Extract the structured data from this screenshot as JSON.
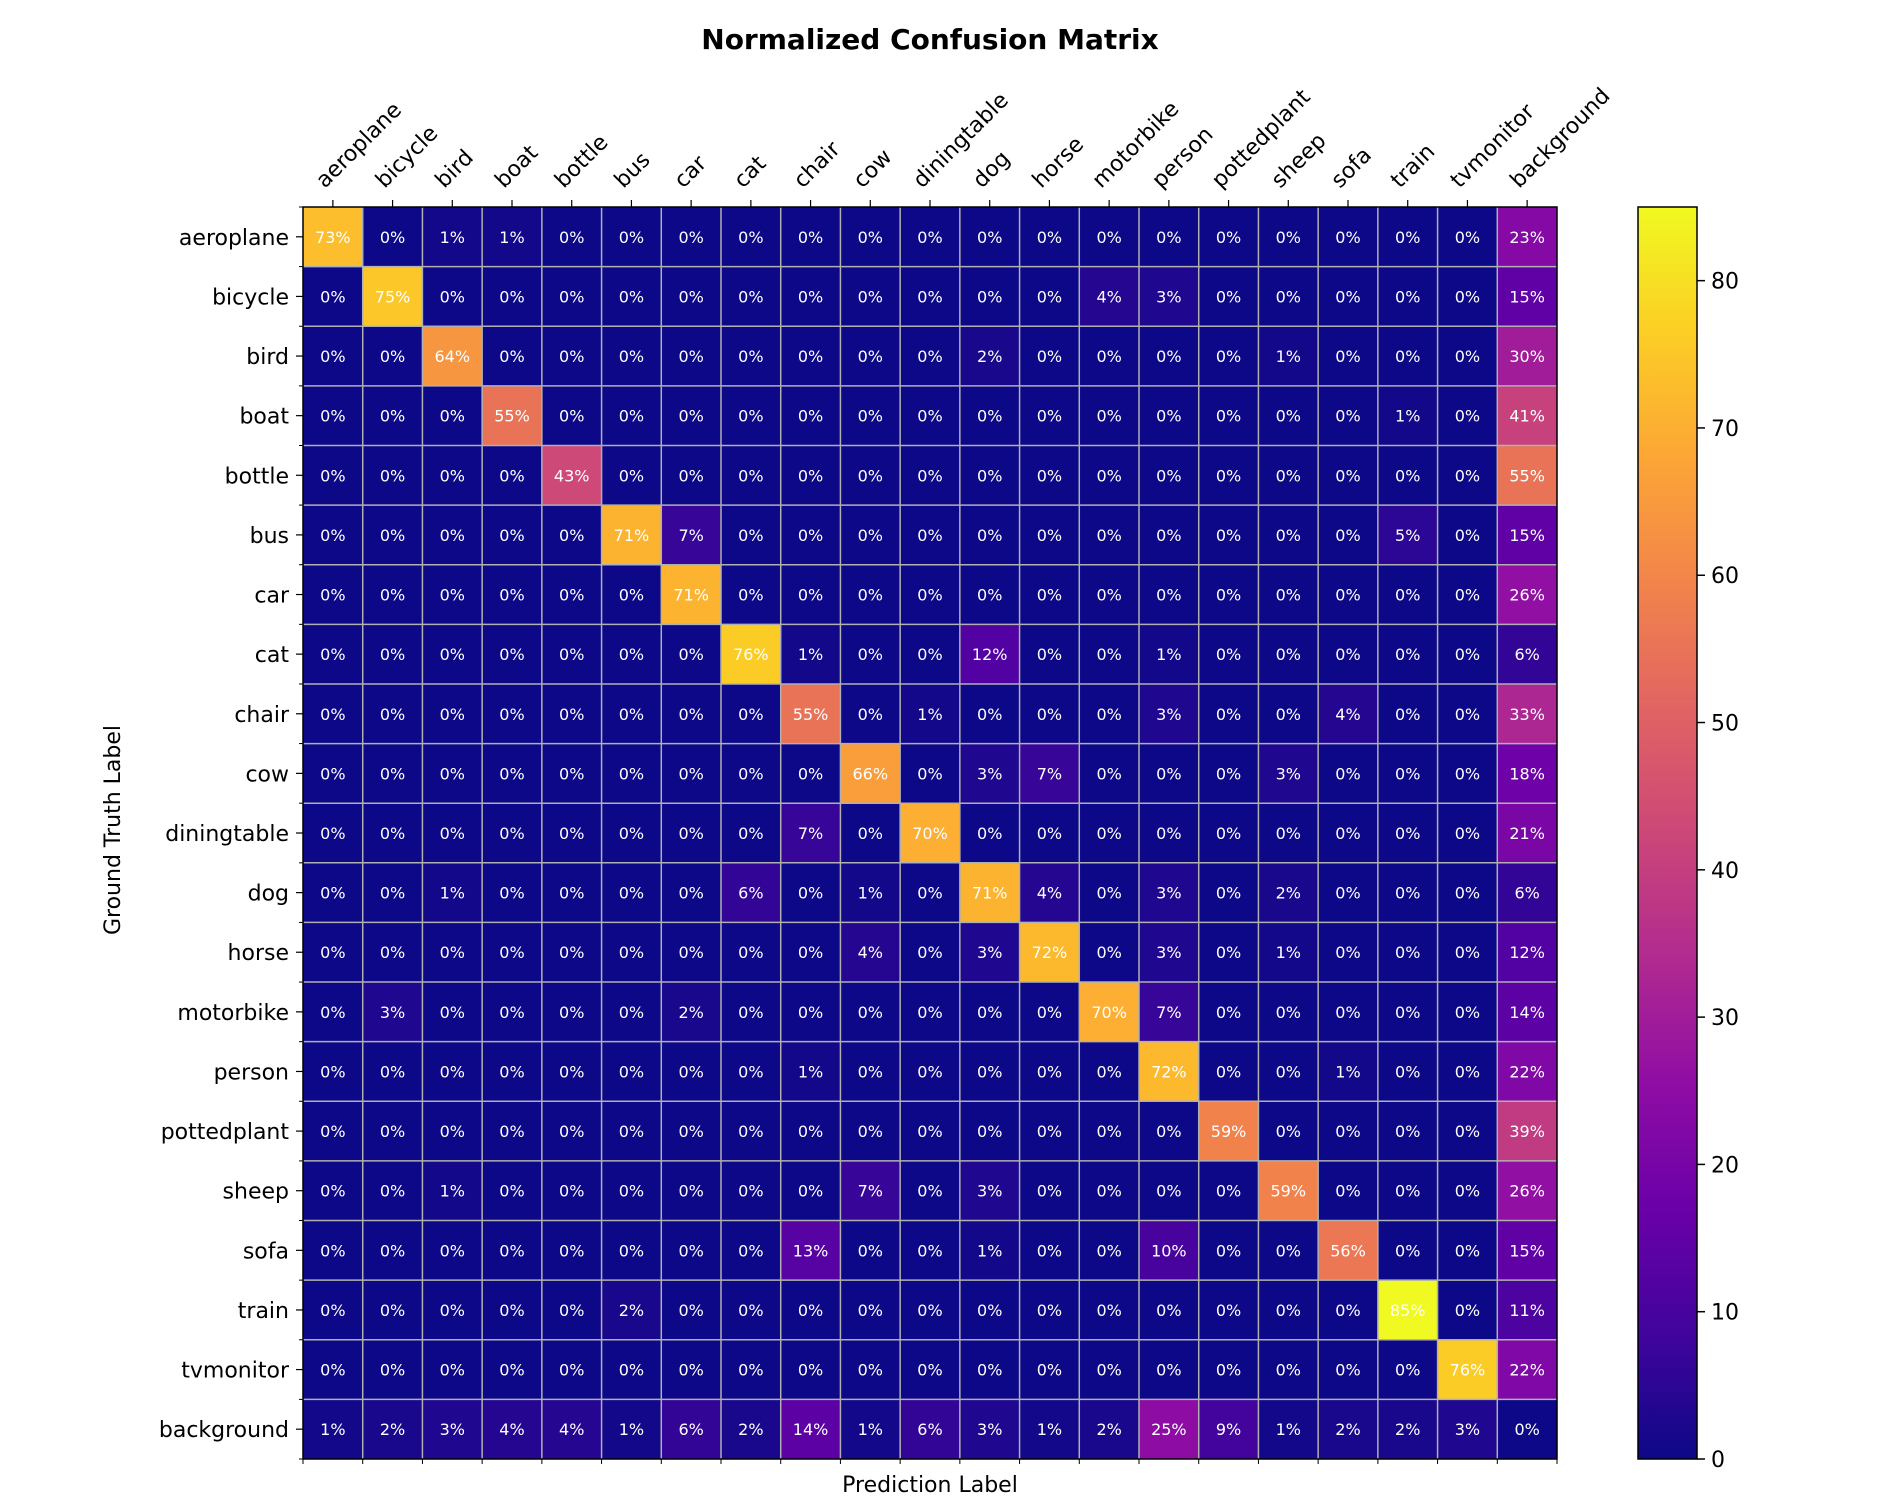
{
  "chart_data": {
    "type": "heatmap",
    "title": "Normalized Confusion Matrix",
    "xlabel": "Prediction Label",
    "ylabel": "Ground Truth Label",
    "categories": [
      "aeroplane",
      "bicycle",
      "bird",
      "boat",
      "bottle",
      "bus",
      "car",
      "cat",
      "chair",
      "cow",
      "diningtable",
      "dog",
      "horse",
      "motorbike",
      "person",
      "pottedplant",
      "sheep",
      "sofa",
      "train",
      "tvmonitor",
      "background"
    ],
    "matrix": [
      [
        73,
        0,
        1,
        1,
        0,
        0,
        0,
        0,
        0,
        0,
        0,
        0,
        0,
        0,
        0,
        0,
        0,
        0,
        0,
        0,
        23
      ],
      [
        0,
        75,
        0,
        0,
        0,
        0,
        0,
        0,
        0,
        0,
        0,
        0,
        0,
        4,
        3,
        0,
        0,
        0,
        0,
        0,
        15
      ],
      [
        0,
        0,
        64,
        0,
        0,
        0,
        0,
        0,
        0,
        0,
        0,
        2,
        0,
        0,
        0,
        0,
        1,
        0,
        0,
        0,
        30
      ],
      [
        0,
        0,
        0,
        55,
        0,
        0,
        0,
        0,
        0,
        0,
        0,
        0,
        0,
        0,
        0,
        0,
        0,
        0,
        1,
        0,
        41
      ],
      [
        0,
        0,
        0,
        0,
        43,
        0,
        0,
        0,
        0,
        0,
        0,
        0,
        0,
        0,
        0,
        0,
        0,
        0,
        0,
        0,
        55
      ],
      [
        0,
        0,
        0,
        0,
        0,
        71,
        7,
        0,
        0,
        0,
        0,
        0,
        0,
        0,
        0,
        0,
        0,
        0,
        5,
        0,
        15
      ],
      [
        0,
        0,
        0,
        0,
        0,
        0,
        71,
        0,
        0,
        0,
        0,
        0,
        0,
        0,
        0,
        0,
        0,
        0,
        0,
        0,
        26
      ],
      [
        0,
        0,
        0,
        0,
        0,
        0,
        0,
        76,
        1,
        0,
        0,
        12,
        0,
        0,
        1,
        0,
        0,
        0,
        0,
        0,
        6
      ],
      [
        0,
        0,
        0,
        0,
        0,
        0,
        0,
        0,
        55,
        0,
        1,
        0,
        0,
        0,
        3,
        0,
        0,
        4,
        0,
        0,
        33
      ],
      [
        0,
        0,
        0,
        0,
        0,
        0,
        0,
        0,
        0,
        66,
        0,
        3,
        7,
        0,
        0,
        0,
        3,
        0,
        0,
        0,
        18
      ],
      [
        0,
        0,
        0,
        0,
        0,
        0,
        0,
        0,
        7,
        0,
        70,
        0,
        0,
        0,
        0,
        0,
        0,
        0,
        0,
        0,
        21
      ],
      [
        0,
        0,
        1,
        0,
        0,
        0,
        0,
        6,
        0,
        1,
        0,
        71,
        4,
        0,
        3,
        0,
        2,
        0,
        0,
        0,
        6
      ],
      [
        0,
        0,
        0,
        0,
        0,
        0,
        0,
        0,
        0,
        4,
        0,
        3,
        72,
        0,
        3,
        0,
        1,
        0,
        0,
        0,
        12
      ],
      [
        0,
        3,
        0,
        0,
        0,
        0,
        2,
        0,
        0,
        0,
        0,
        0,
        0,
        70,
        7,
        0,
        0,
        0,
        0,
        0,
        14
      ],
      [
        0,
        0,
        0,
        0,
        0,
        0,
        0,
        0,
        1,
        0,
        0,
        0,
        0,
        0,
        72,
        0,
        0,
        1,
        0,
        0,
        22
      ],
      [
        0,
        0,
        0,
        0,
        0,
        0,
        0,
        0,
        0,
        0,
        0,
        0,
        0,
        0,
        0,
        59,
        0,
        0,
        0,
        0,
        39
      ],
      [
        0,
        0,
        1,
        0,
        0,
        0,
        0,
        0,
        0,
        7,
        0,
        3,
        0,
        0,
        0,
        0,
        59,
        0,
        0,
        0,
        26
      ],
      [
        0,
        0,
        0,
        0,
        0,
        0,
        0,
        0,
        13,
        0,
        0,
        1,
        0,
        0,
        10,
        0,
        0,
        56,
        0,
        0,
        15
      ],
      [
        0,
        0,
        0,
        0,
        0,
        2,
        0,
        0,
        0,
        0,
        0,
        0,
        0,
        0,
        0,
        0,
        0,
        0,
        85,
        0,
        11
      ],
      [
        0,
        0,
        0,
        0,
        0,
        0,
        0,
        0,
        0,
        0,
        0,
        0,
        0,
        0,
        0,
        0,
        0,
        0,
        0,
        76,
        22
      ],
      [
        1,
        2,
        3,
        4,
        4,
        1,
        6,
        2,
        14,
        1,
        6,
        3,
        1,
        2,
        25,
        9,
        1,
        2,
        2,
        3,
        0
      ]
    ],
    "value_suffix": "%",
    "colormap": "plasma",
    "colorbar": {
      "min": 0,
      "max": 85,
      "ticks": [
        0,
        10,
        20,
        30,
        40,
        50,
        60,
        70,
        80
      ]
    },
    "grid": true,
    "grid_color": "#b0b0b0",
    "x_tick_position": "top",
    "colorbar_position": "right"
  }
}
